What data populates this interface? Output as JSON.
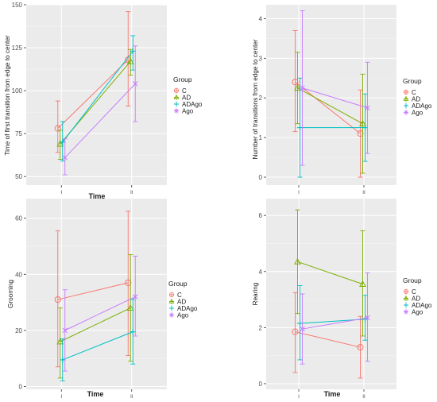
{
  "colors": {
    "C": "#f8766d",
    "AD": "#7cae00",
    "ADAgo": "#00bfc4",
    "Ago": "#c77cff",
    "panel_bg": "#ebebeb",
    "grid": "#ffffff",
    "text": "#1a1a1a",
    "tick_text": "#4d4d4d"
  },
  "legend": {
    "title": "Group",
    "items": [
      "C",
      "AD",
      "ADAgo",
      "Ago"
    ]
  },
  "chart_data": [
    {
      "type": "line",
      "xlabel": "Time",
      "ylabel": "Time of first transition from edge to center",
      "categories": [
        "I",
        "II"
      ],
      "ylim": [
        45,
        150
      ],
      "yticks": [
        50,
        75,
        100,
        125,
        150
      ],
      "grid": true,
      "legend_position": "right",
      "series": [
        {
          "name": "C",
          "values": [
            78,
            118
          ],
          "error_low": [
            64,
            91
          ],
          "error_high": [
            94,
            146
          ]
        },
        {
          "name": "AD",
          "values": [
            69,
            117
          ],
          "error_low": [
            60,
            109
          ],
          "error_high": [
            77,
            124
          ]
        },
        {
          "name": "ADAgo",
          "values": [
            70,
            123
          ],
          "error_low": [
            59,
            112
          ],
          "error_high": [
            82,
            132
          ]
        },
        {
          "name": "Ago",
          "values": [
            61,
            104
          ],
          "error_low": [
            51,
            82
          ],
          "error_high": [
            72,
            126
          ]
        }
      ]
    },
    {
      "type": "line",
      "xlabel": "",
      "ylabel": "Number of transitions from edge to center",
      "categories": [
        "I",
        "II"
      ],
      "ylim": [
        -0.2,
        4.35
      ],
      "yticks": [
        0,
        1,
        2,
        3,
        4
      ],
      "grid": true,
      "legend_position": "right",
      "series": [
        {
          "name": "C",
          "values": [
            2.4,
            1.1
          ],
          "error_low": [
            1.15,
            0.0
          ],
          "error_high": [
            3.7,
            2.2
          ]
        },
        {
          "name": "AD",
          "values": [
            2.25,
            1.35
          ],
          "error_low": [
            1.35,
            0.1
          ],
          "error_high": [
            3.15,
            2.6
          ]
        },
        {
          "name": "ADAgo",
          "values": [
            1.25,
            1.25
          ],
          "error_low": [
            0.0,
            0.4
          ],
          "error_high": [
            2.5,
            2.1
          ]
        },
        {
          "name": "Ago",
          "values": [
            2.25,
            1.75
          ],
          "error_low": [
            0.3,
            0.6
          ],
          "error_high": [
            4.2,
            2.9
          ]
        }
      ]
    },
    {
      "type": "line",
      "xlabel": "Time",
      "ylabel": "Grooming",
      "categories": [
        "I",
        "II"
      ],
      "ylim": [
        -1,
        67
      ],
      "yticks": [
        0,
        20,
        40,
        60
      ],
      "grid": true,
      "legend_position": "right",
      "series": [
        {
          "name": "C",
          "values": [
            31,
            37
          ],
          "error_low": [
            7,
            11
          ],
          "error_high": [
            55.5,
            62.5
          ]
        },
        {
          "name": "AD",
          "values": [
            16,
            28
          ],
          "error_low": [
            3,
            9
          ],
          "error_high": [
            28,
            47
          ]
        },
        {
          "name": "ADAgo",
          "values": [
            9.5,
            19.5
          ],
          "error_low": [
            2,
            8
          ],
          "error_high": [
            17,
            31
          ]
        },
        {
          "name": "Ago",
          "values": [
            20,
            32
          ],
          "error_low": [
            5.5,
            18
          ],
          "error_high": [
            34.5,
            46.5
          ]
        }
      ]
    },
    {
      "type": "line",
      "xlabel": "Time",
      "ylabel": "Rearing",
      "categories": [
        "I",
        "II"
      ],
      "ylim": [
        -0.2,
        6.6
      ],
      "yticks": [
        0,
        2,
        4,
        6
      ],
      "grid": true,
      "legend_position": "right",
      "series": [
        {
          "name": "C",
          "values": [
            1.85,
            1.3
          ],
          "error_low": [
            0.4,
            0.2
          ],
          "error_high": [
            3.25,
            2.4
          ]
        },
        {
          "name": "AD",
          "values": [
            4.35,
            3.55
          ],
          "error_low": [
            2.5,
            1.7
          ],
          "error_high": [
            6.2,
            5.45
          ]
        },
        {
          "name": "ADAgo",
          "values": [
            2.15,
            2.3
          ],
          "error_low": [
            0.85,
            1.55
          ],
          "error_high": [
            3.5,
            3.15
          ]
        },
        {
          "name": "Ago",
          "values": [
            1.95,
            2.35
          ],
          "error_low": [
            0.7,
            0.8
          ],
          "error_high": [
            3.2,
            3.95
          ]
        }
      ]
    }
  ]
}
